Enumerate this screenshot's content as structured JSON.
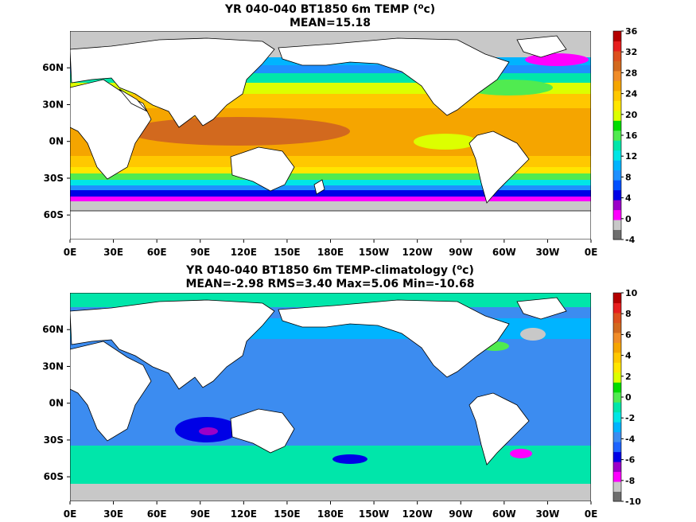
{
  "chart_data": [
    {
      "type": "heatmap",
      "title": "YR 040-040 BT1850 6m TEMP (°c)",
      "title_prefix": "YR 040-040 BT1850 6m TEMP (",
      "title_sup": "o",
      "title_suffix": "c)",
      "subtitle": "MEAN=15.18",
      "x_ticks": [
        "0E",
        "30E",
        "60E",
        "90E",
        "120E",
        "150E",
        "180E",
        "150W",
        "120W",
        "90W",
        "60W",
        "30W",
        "0E"
      ],
      "y_ticks": [
        {
          "lat": 60,
          "label": "60N"
        },
        {
          "lat": 30,
          "label": "30N"
        },
        {
          "lat": 0,
          "label": "0N"
        },
        {
          "lat": -30,
          "label": "30S"
        },
        {
          "lat": -60,
          "label": "60S"
        }
      ],
      "xlim": [
        0,
        360
      ],
      "ylim": [
        -80,
        90
      ],
      "colorbar": {
        "ticks": [
          "36",
          "32",
          "28",
          "24",
          "20",
          "16",
          "12",
          "8",
          "4",
          "0",
          "-4"
        ],
        "range": [
          -4,
          36
        ],
        "colors": [
          "#6e6e6e",
          "#c8c8c8",
          "#ff00ff",
          "#9b00c8",
          "#0000e6",
          "#0050ff",
          "#1e90ff",
          "#00b4ff",
          "#00e6e6",
          "#00e6aa",
          "#50eb50",
          "#00dc00",
          "#dcff00",
          "#ffe600",
          "#ffc800",
          "#f5a500",
          "#f08c28",
          "#d2691e",
          "#dc501e",
          "#e61e1e",
          "#b40000"
        ]
      },
      "land_color": "#ffffff",
      "missing_color": "#c8c8c8"
    },
    {
      "type": "heatmap",
      "title": "YR 040-040 BT1850 6m TEMP-climatology (°c)",
      "title_prefix": "YR 040-040 BT1850 6m TEMP-climatology (",
      "title_sup": "o",
      "title_suffix": "c)",
      "subtitle": "MEAN=-2.98   RMS=3.40   Max=5.06   Min=-10.68",
      "x_ticks": [
        "0E",
        "30E",
        "60E",
        "90E",
        "120E",
        "150E",
        "180E",
        "150W",
        "120W",
        "90W",
        "60W",
        "30W",
        "0E"
      ],
      "y_ticks": [
        {
          "lat": 60,
          "label": "60N"
        },
        {
          "lat": 30,
          "label": "30N"
        },
        {
          "lat": 0,
          "label": "0N"
        },
        {
          "lat": -30,
          "label": "30S"
        },
        {
          "lat": -60,
          "label": "60S"
        }
      ],
      "xlim": [
        0,
        360
      ],
      "ylim": [
        -80,
        90
      ],
      "colorbar": {
        "ticks": [
          "10",
          "8",
          "6",
          "4",
          "2",
          "0",
          "-2",
          "-4",
          "-6",
          "-8",
          "-10"
        ],
        "range": [
          -10,
          10
        ],
        "colors": [
          "#6e6e6e",
          "#c8c8c8",
          "#ff00ff",
          "#9b00c8",
          "#0000e6",
          "#1e64ff",
          "#3c8cf0",
          "#00b4ff",
          "#00e6e6",
          "#00e6aa",
          "#50eb50",
          "#00dc00",
          "#dcff00",
          "#ffe600",
          "#ffc800",
          "#f5a500",
          "#f08c28",
          "#d2691e",
          "#dc501e",
          "#e61e1e",
          "#b40000"
        ]
      },
      "land_color": "#ffffff",
      "missing_color": "#c8c8c8"
    }
  ]
}
